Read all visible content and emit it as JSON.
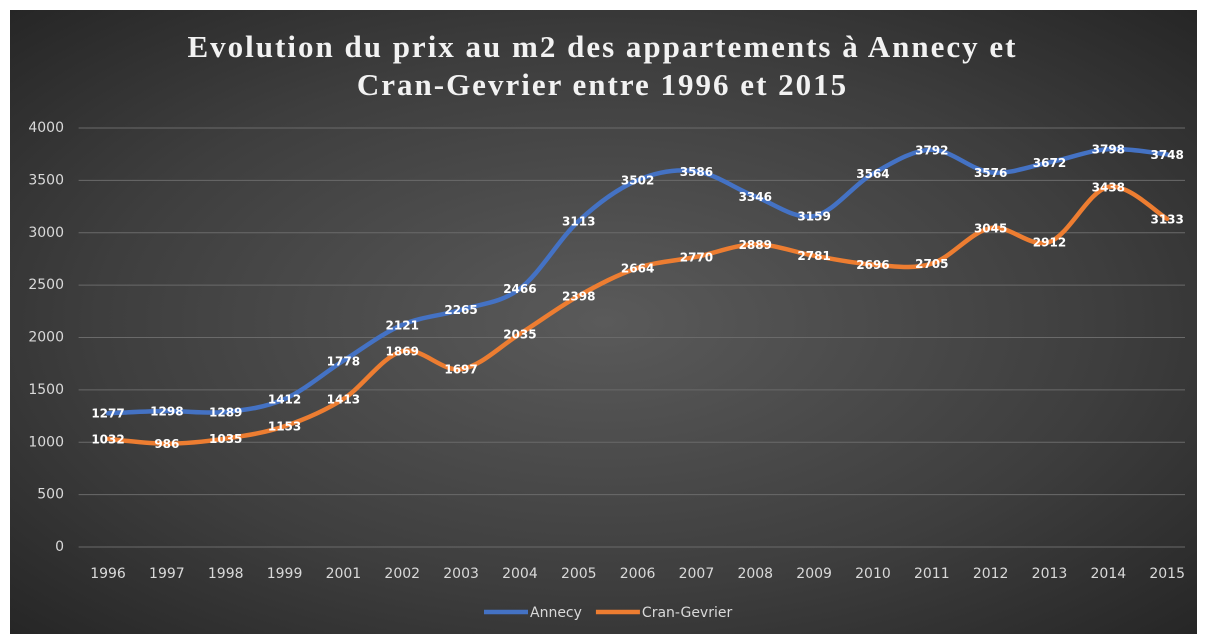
{
  "chart_data": {
    "type": "line",
    "title": "Evolution du prix au m2 des appartements à Annecy et Cran-Gevrier entre 1996 et 2015",
    "categories": [
      "1996",
      "1997",
      "1998",
      "1999",
      "2001",
      "2002",
      "2003",
      "2004",
      "2005",
      "2006",
      "2007",
      "2008",
      "2009",
      "2010",
      "2011",
      "2012",
      "2013",
      "2014",
      "2015"
    ],
    "series": [
      {
        "name": "Annecy",
        "color": "#4472c4",
        "values": [
          1277,
          1298,
          1289,
          1412,
          1778,
          2121,
          2265,
          2466,
          3113,
          3502,
          3586,
          3346,
          3159,
          3564,
          3792,
          3576,
          3672,
          3798,
          3748
        ]
      },
      {
        "name": "Cran-Gevrier",
        "color": "#ed7d31",
        "values": [
          1032,
          986,
          1035,
          1153,
          1413,
          1869,
          1697,
          2035,
          2398,
          2664,
          2770,
          2889,
          2781,
          2696,
          2705,
          3045,
          2912,
          3438,
          3133
        ]
      }
    ],
    "ylim": [
      0,
      4000
    ],
    "yticks": [
      0,
      500,
      1000,
      1500,
      2000,
      2500,
      3000,
      3500,
      4000
    ],
    "grid": true,
    "smooth": true,
    "legend": "bottom"
  }
}
